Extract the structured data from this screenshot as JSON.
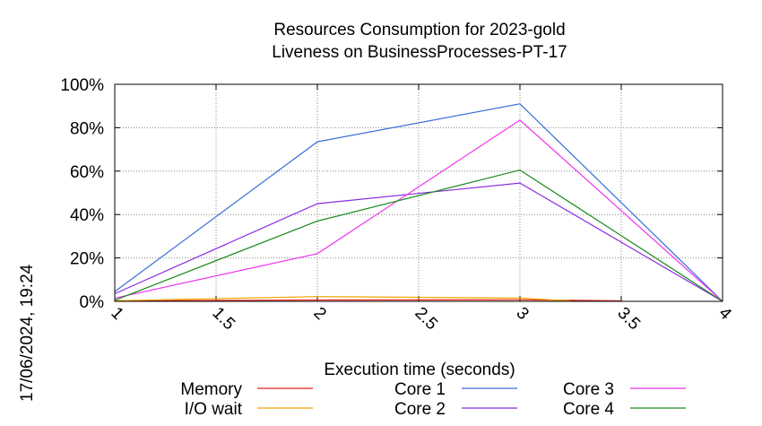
{
  "chart_data": {
    "type": "line",
    "title": "Resources Consumption for 2023-gold",
    "subtitle": "Liveness on BusinessProcesses-PT-17",
    "xlabel": "Execution time (seconds)",
    "ylabel": "",
    "xlim": [
      1,
      4
    ],
    "ylim": [
      0,
      100
    ],
    "x_ticks": [
      "1",
      "1.5",
      "2",
      "2.5",
      "3",
      "3.5",
      "4"
    ],
    "y_ticks": [
      "0%",
      "20%",
      "40%",
      "60%",
      "80%",
      "100%"
    ],
    "grid": true,
    "legend_position": "bottom",
    "timestamp": "17/06/2024, 19:24",
    "series": [
      {
        "name": "Memory",
        "color": "#e8221a",
        "x": [
          1,
          2,
          3,
          3.5
        ],
        "values": [
          0.2,
          0.6,
          0.7,
          0.2
        ]
      },
      {
        "name": "I/O wait",
        "color": "#f0a400",
        "x": [
          1,
          2,
          3,
          3.25
        ],
        "values": [
          0.3,
          2.2,
          1.5,
          0.2
        ]
      },
      {
        "name": "Core 1",
        "color": "#3a6fd8",
        "x": [
          1,
          2,
          3,
          4
        ],
        "values": [
          4.5,
          73.5,
          91,
          0
        ]
      },
      {
        "name": "Core 2",
        "color": "#8a2be2",
        "x": [
          1,
          2,
          3,
          4
        ],
        "values": [
          3.5,
          45,
          54.5,
          0
        ]
      },
      {
        "name": "Core 3",
        "color": "#ee33ee",
        "x": [
          1,
          2,
          3,
          4
        ],
        "values": [
          1.5,
          22,
          83.5,
          0
        ]
      },
      {
        "name": "Core 4",
        "color": "#1a8a1a",
        "x": [
          1,
          2,
          3,
          4
        ],
        "values": [
          0.5,
          37,
          60.5,
          0
        ]
      }
    ]
  }
}
